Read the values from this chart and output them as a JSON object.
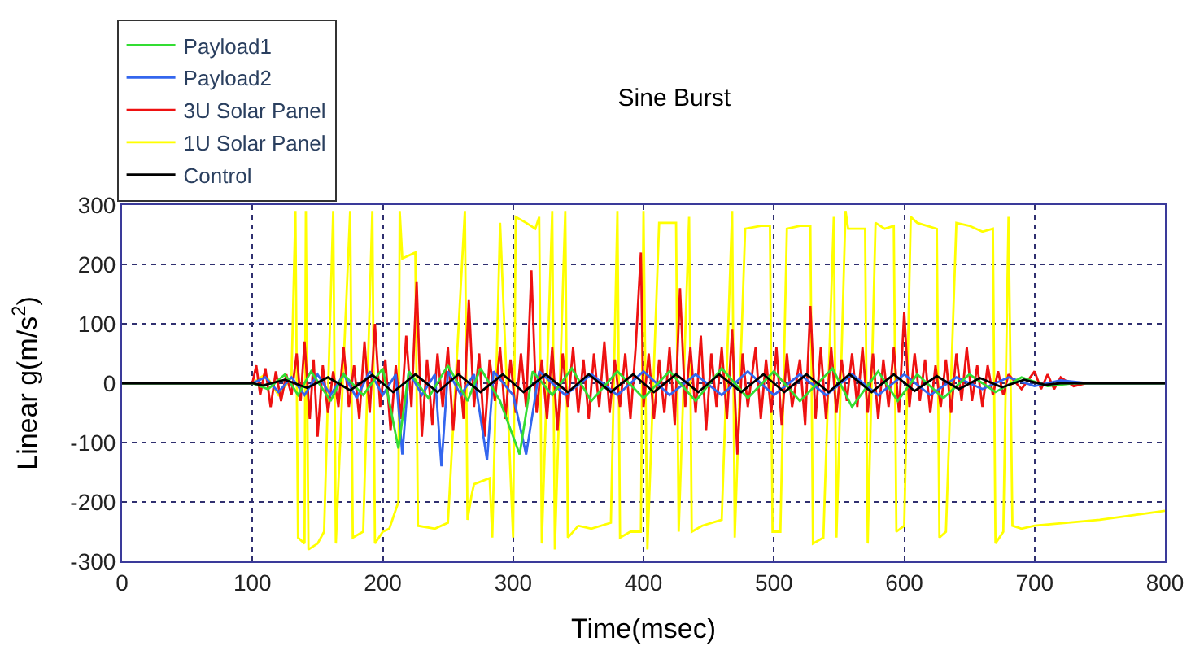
{
  "chart_data": {
    "type": "line",
    "title": "Sine Burst",
    "xlabel": "Time(msec)",
    "ylabel": "Linear g(m/s$^{2}$)",
    "xlim": [
      0,
      800
    ],
    "xticks": [
      0,
      100,
      200,
      300,
      400,
      500,
      600,
      700,
      800
    ],
    "ylim": [
      -300,
      300
    ],
    "yticks": [
      -300,
      -200,
      -100,
      0,
      100,
      200,
      300
    ],
    "grid": true,
    "legend": "top left",
    "marker": "none",
    "line_style": "solid",
    "series": [
      {
        "name": "Payload1",
        "color": "#33dd33",
        "x": [
          0,
          100,
          112,
          125,
          135,
          145,
          160,
          170,
          185,
          200,
          212,
          220,
          235,
          250,
          265,
          275,
          290,
          305,
          315,
          330,
          345,
          360,
          380,
          400,
          420,
          440,
          460,
          480,
          500,
          520,
          545,
          560,
          580,
          595,
          610,
          630,
          650,
          670,
          690,
          710,
          730,
          800
        ],
        "values": [
          0,
          0,
          -10,
          15,
          -20,
          20,
          -30,
          15,
          -20,
          25,
          -110,
          20,
          -25,
          30,
          -30,
          25,
          -30,
          -120,
          20,
          -20,
          25,
          -30,
          20,
          -25,
          20,
          -30,
          25,
          -25,
          20,
          -30,
          25,
          -40,
          20,
          -30,
          15,
          -25,
          15,
          -15,
          10,
          -5,
          0,
          0
        ]
      },
      {
        "name": "Payload2",
        "color": "#3366ee",
        "x": [
          0,
          100,
          110,
          120,
          130,
          140,
          150,
          160,
          170,
          180,
          190,
          200,
          210,
          215,
          220,
          230,
          240,
          245,
          250,
          260,
          270,
          280,
          285,
          300,
          310,
          320,
          340,
          360,
          380,
          400,
          420,
          440,
          460,
          480,
          500,
          520,
          540,
          560,
          580,
          600,
          620,
          640,
          660,
          680,
          700,
          720,
          740,
          800
        ],
        "values": [
          0,
          0,
          10,
          -15,
          10,
          -20,
          15,
          -20,
          15,
          -25,
          20,
          -20,
          15,
          -120,
          20,
          -20,
          15,
          -140,
          20,
          -20,
          15,
          -130,
          20,
          -20,
          -120,
          20,
          -20,
          15,
          -20,
          20,
          -20,
          15,
          -20,
          20,
          -20,
          15,
          -20,
          15,
          -20,
          15,
          -20,
          10,
          -10,
          10,
          -5,
          5,
          0,
          0
        ]
      },
      {
        "name": "3U Solar Panel",
        "color": "#ee1111",
        "x": [
          0,
          100,
          103,
          106,
          110,
          114,
          118,
          122,
          126,
          130,
          134,
          137,
          140,
          144,
          147,
          150,
          154,
          158,
          162,
          166,
          170,
          174,
          178,
          182,
          186,
          190,
          194,
          198,
          202,
          206,
          210,
          214,
          218,
          222,
          226,
          230,
          234,
          238,
          242,
          246,
          250,
          254,
          258,
          262,
          266,
          270,
          274,
          278,
          282,
          286,
          290,
          294,
          298,
          302,
          306,
          310,
          314,
          318,
          322,
          326,
          330,
          334,
          338,
          342,
          346,
          350,
          354,
          358,
          362,
          366,
          370,
          374,
          378,
          382,
          386,
          390,
          394,
          398,
          400,
          404,
          408,
          412,
          416,
          420,
          424,
          428,
          432,
          436,
          440,
          444,
          448,
          452,
          456,
          460,
          464,
          468,
          472,
          476,
          480,
          486,
          490,
          494,
          498,
          502,
          506,
          510,
          514,
          520,
          524,
          528,
          532,
          536,
          540,
          544,
          548,
          552,
          556,
          560,
          564,
          568,
          572,
          576,
          580,
          584,
          588,
          592,
          596,
          600,
          604,
          608,
          612,
          616,
          620,
          624,
          628,
          632,
          636,
          640,
          644,
          648,
          652,
          656,
          660,
          664,
          668,
          672,
          676,
          680,
          690,
          700,
          705,
          710,
          715,
          720,
          730,
          740,
          800
        ],
        "values": [
          0,
          0,
          30,
          -20,
          25,
          -40,
          20,
          -30,
          15,
          -20,
          50,
          -30,
          70,
          -60,
          40,
          -90,
          30,
          -50,
          20,
          -40,
          60,
          -40,
          30,
          -60,
          70,
          -50,
          100,
          -40,
          40,
          -80,
          30,
          -60,
          80,
          -40,
          170,
          -90,
          40,
          -70,
          50,
          -40,
          60,
          -80,
          40,
          -60,
          140,
          -40,
          50,
          -90,
          40,
          -30,
          60,
          -60,
          40,
          -50,
          50,
          -40,
          190,
          -50,
          40,
          -60,
          60,
          -80,
          50,
          -40,
          60,
          -50,
          40,
          -60,
          50,
          -40,
          70,
          -50,
          40,
          -40,
          50,
          -60,
          60,
          220,
          -40,
          50,
          -60,
          40,
          -50,
          60,
          -70,
          160,
          -40,
          60,
          -50,
          80,
          -80,
          50,
          -40,
          60,
          -60,
          90,
          -120,
          50,
          -40,
          60,
          -60,
          40,
          -50,
          60,
          -70,
          50,
          -40,
          40,
          -70,
          130,
          -60,
          60,
          -60,
          60,
          -50,
          40,
          -30,
          50,
          -40,
          60,
          -50,
          50,
          -60,
          40,
          -40,
          60,
          -50,
          120,
          -40,
          50,
          -30,
          40,
          -50,
          30,
          -40,
          40,
          -50,
          50,
          -30,
          60,
          -30,
          30,
          -40,
          30,
          -20,
          20,
          -20,
          15,
          -10,
          20,
          -10,
          15,
          -10,
          10,
          -5,
          0,
          0
        ]
      },
      {
        "name": "1U Solar Panel",
        "color": "#ffff00",
        "x": [
          0,
          100,
          110,
          120,
          130,
          133,
          135,
          140,
          141,
          143,
          150,
          155,
          162,
          164,
          175,
          177,
          185,
          192,
          194,
          200,
          205,
          212,
          213,
          215,
          225,
          227,
          240,
          250,
          263,
          265,
          268,
          270,
          282,
          284,
          290,
          300,
          302,
          310,
          317,
          320,
          322,
          330,
          332,
          340,
          342,
          350,
          360,
          375,
          380,
          382,
          390,
          398,
          400,
          403,
          412,
          415,
          425,
          427,
          435,
          437,
          445,
          460,
          468,
          470,
          478,
          490,
          497,
          499,
          505,
          510,
          520,
          528,
          530,
          538,
          546,
          548,
          555,
          557,
          570,
          572,
          578,
          585,
          592,
          594,
          600,
          605,
          610,
          625,
          627,
          632,
          640,
          650,
          660,
          668,
          670,
          676,
          680,
          683,
          690,
          700,
          750,
          800
        ],
        "values": [
          0,
          0,
          15,
          -20,
          10,
          290,
          -260,
          -270,
          290,
          -280,
          -270,
          -250,
          290,
          -270,
          290,
          -260,
          -250,
          290,
          -270,
          -250,
          -245,
          -200,
          290,
          210,
          220,
          -240,
          -245,
          -235,
          290,
          -230,
          -190,
          -170,
          -160,
          -260,
          270,
          -260,
          280,
          270,
          260,
          280,
          -270,
          290,
          -280,
          290,
          -260,
          -240,
          -245,
          -235,
          290,
          -260,
          -250,
          -250,
          290,
          -280,
          270,
          270,
          270,
          -250,
          280,
          -250,
          -240,
          -230,
          290,
          -260,
          260,
          265,
          265,
          -250,
          -250,
          260,
          265,
          265,
          -270,
          -260,
          280,
          -260,
          290,
          260,
          260,
          -270,
          270,
          260,
          265,
          -250,
          -240,
          280,
          270,
          260,
          -260,
          -250,
          270,
          265,
          255,
          260,
          -270,
          -250,
          280,
          -240,
          -245,
          -240,
          -230,
          -215
        ]
      },
      {
        "name": "Control",
        "color": "#000000",
        "x": [
          0,
          100,
          108,
          125,
          142,
          158,
          175,
          192,
          208,
          225,
          242,
          258,
          275,
          292,
          308,
          325,
          342,
          358,
          375,
          392,
          408,
          425,
          442,
          458,
          475,
          492,
          508,
          525,
          542,
          558,
          575,
          592,
          608,
          625,
          642,
          658,
          675,
          692,
          708,
          720,
          800
        ],
        "values": [
          0,
          0,
          -4,
          6,
          -8,
          10,
          -12,
          14,
          -15,
          15,
          -15,
          15,
          -15,
          15,
          -15,
          15,
          -15,
          15,
          -15,
          15,
          -15,
          15,
          -15,
          15,
          -15,
          15,
          -15,
          15,
          -15,
          15,
          -15,
          15,
          -13,
          12,
          -10,
          9,
          -7,
          6,
          -3,
          0,
          0
        ]
      }
    ]
  }
}
